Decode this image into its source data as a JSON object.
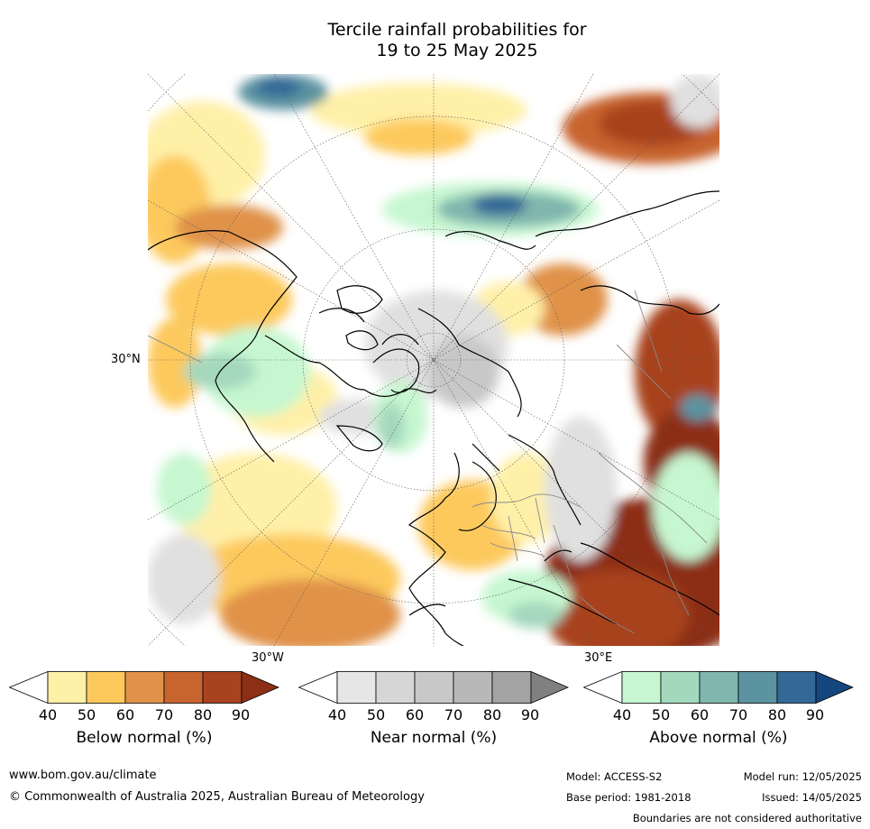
{
  "title": {
    "line1": "Tercile rainfall probabilities for",
    "line2": "19 to 25 May 2025"
  },
  "map": {
    "projection": "north-polar-stereographic",
    "labels": {
      "lat_30n": "30°N",
      "lon_30w": "30°W",
      "lon_30e": "30°E"
    },
    "colors": {
      "below": [
        "#fff0a8",
        "#fdc95d",
        "#e0924a",
        "#c8642e",
        "#a8431f",
        "#8c2f14"
      ],
      "near": [
        "#e6e6e6",
        "#d6d6d6",
        "#c8c8c8",
        "#b8b8b8",
        "#a3a3a3",
        "#808080"
      ],
      "above": [
        "#c6f7d0",
        "#a4d8bd",
        "#7fb6ad",
        "#5c93a0",
        "#336897",
        "#15477f"
      ],
      "coastline": "#000000",
      "borders": "#808080"
    }
  },
  "colorbars": [
    {
      "label": "Below normal (%)",
      "ticks": [
        "40",
        "50",
        "60",
        "70",
        "80",
        "90"
      ],
      "colors": [
        "#ffffff",
        "#fff0a8",
        "#fdc95d",
        "#e0924a",
        "#c8642e",
        "#a8431f",
        "#8c2f14"
      ]
    },
    {
      "label": "Near normal (%)",
      "ticks": [
        "40",
        "50",
        "60",
        "70",
        "80",
        "90"
      ],
      "colors": [
        "#ffffff",
        "#e6e6e6",
        "#d6d6d6",
        "#c8c8c8",
        "#b8b8b8",
        "#a3a3a3",
        "#808080"
      ]
    },
    {
      "label": "Above normal (%)",
      "ticks": [
        "40",
        "50",
        "60",
        "70",
        "80",
        "90"
      ],
      "colors": [
        "#ffffff",
        "#c6f7d0",
        "#a4d8bd",
        "#7fb6ad",
        "#5c93a0",
        "#336897",
        "#15477f"
      ]
    }
  ],
  "footer": {
    "website": "www.bom.gov.au/climate",
    "copyright": "© Commonwealth of Australia 2025, Australian Bureau of Meteorology",
    "model": "Model: ACCESS-S2",
    "base_period": "Base period: 1981-2018",
    "model_run": "Model run: 12/05/2025",
    "issued": "Issued: 14/05/2025",
    "disclaimer": "Boundaries are not considered authoritative"
  }
}
